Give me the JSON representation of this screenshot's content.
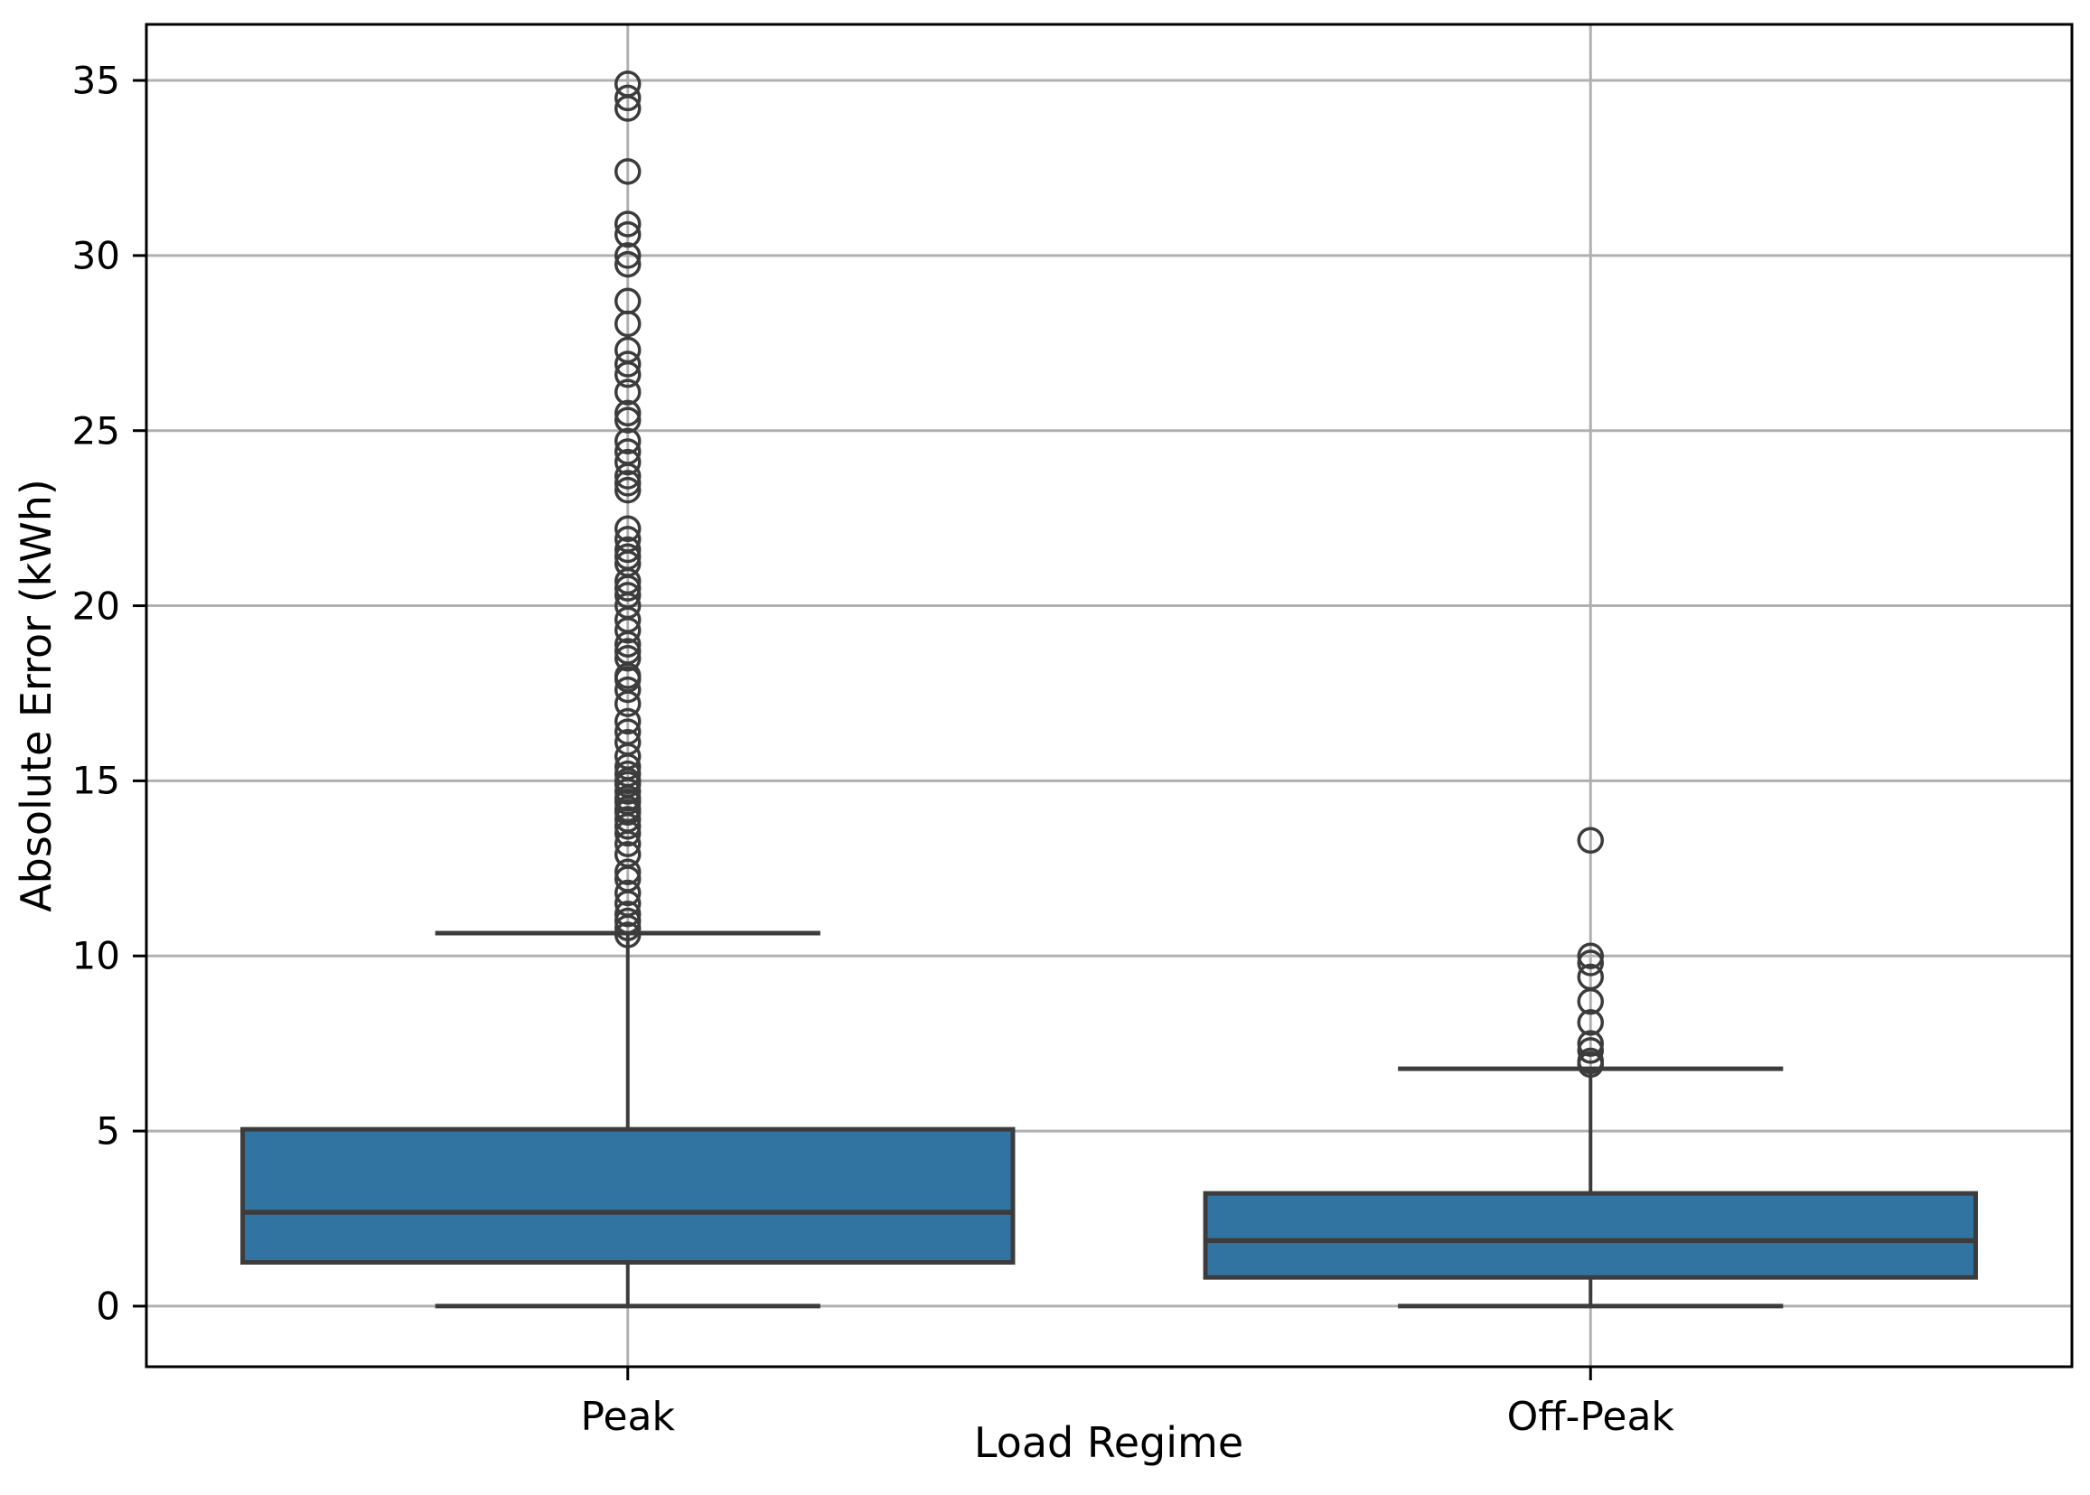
{
  "figure": {
    "background": "#ffffff"
  },
  "chart_data": {
    "type": "box",
    "title": "",
    "xlabel": "Load Regime",
    "ylabel": "Absolute Error (kWh)",
    "categories": [
      "Peak",
      "Off-Peak"
    ],
    "yticks": [
      0,
      5,
      10,
      15,
      20,
      25,
      30,
      35
    ],
    "ylim": [
      -1.73,
      36.6
    ],
    "grid": true,
    "legend": false,
    "series": [
      {
        "name": "Peak",
        "q1": 1.25,
        "median": 2.68,
        "q3": 5.05,
        "whisker_low": 0.0,
        "whisker_high": 10.65,
        "outliers": [
          34.9,
          34.5,
          34.2,
          32.4,
          30.9,
          30.6,
          30.0,
          29.75,
          28.7,
          28.05,
          27.3,
          26.9,
          26.6,
          26.1,
          25.5,
          25.3,
          24.7,
          24.4,
          24.1,
          23.7,
          23.5,
          23.3,
          22.2,
          21.9,
          21.6,
          21.4,
          21.2,
          20.7,
          20.5,
          20.3,
          20.0,
          19.6,
          19.3,
          18.9,
          18.7,
          18.5,
          18.0,
          17.9,
          17.6,
          17.2,
          16.7,
          16.4,
          16.1,
          15.7,
          15.4,
          15.2,
          15.0,
          14.9,
          14.7,
          14.5,
          14.4,
          14.2,
          14.1,
          13.9,
          13.7,
          13.5,
          13.2,
          12.9,
          12.4,
          12.2,
          11.8,
          11.5,
          11.2,
          11.0,
          10.8,
          10.6
        ]
      },
      {
        "name": "Off-Peak",
        "q1": 0.82,
        "median": 1.87,
        "q3": 3.22,
        "whisker_low": 0.0,
        "whisker_high": 6.78,
        "outliers": [
          13.3,
          10.0,
          9.8,
          9.4,
          8.7,
          8.1,
          7.5,
          7.3,
          7.0,
          6.9
        ]
      }
    ],
    "colors": {
      "box_fill": "#3274a1",
      "line": "#3c3c3c",
      "grid": "#b0b0b0",
      "spine": "#000000",
      "text": "#000000"
    }
  }
}
